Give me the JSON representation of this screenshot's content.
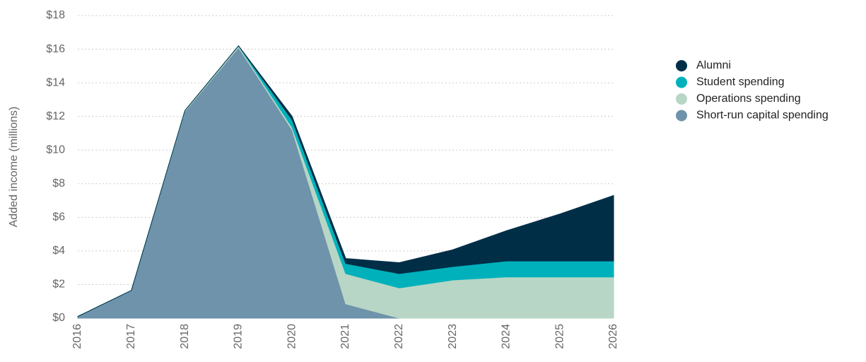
{
  "chart_data": {
    "type": "stacked_area",
    "y_label": "Added income (millions)",
    "categories": [
      "2016",
      "2017",
      "2018",
      "2019",
      "2020",
      "2021",
      "2022",
      "2023",
      "2024",
      "2025",
      "2026"
    ],
    "series": [
      {
        "name": "Alumni",
        "color": "#012e47",
        "values": [
          0,
          0,
          0,
          0,
          0.2,
          0.3,
          0.65,
          1.0,
          1.8,
          2.8,
          3.9
        ]
      },
      {
        "name": "Student spending",
        "color": "#00b1bb",
        "values": [
          0,
          0,
          0,
          0,
          0.45,
          0.6,
          0.85,
          0.8,
          0.95,
          0.95,
          0.95
        ]
      },
      {
        "name": "Operations spending",
        "color": "#b8d6c5",
        "values": [
          0,
          0,
          0.05,
          0.1,
          0.15,
          1.8,
          1.8,
          2.27,
          2.45,
          2.45,
          2.45
        ]
      },
      {
        "name": "Short-run capital spending",
        "color": "#6e93ab",
        "values": [
          0.1,
          1.65,
          12.3,
          16.1,
          11.2,
          0.85,
          0,
          0,
          0,
          0,
          0
        ]
      }
    ],
    "ylim": [
      0,
      18
    ],
    "yticks": [
      {
        "value": 0,
        "label": "$0"
      },
      {
        "value": 2,
        "label": "$2"
      },
      {
        "value": 4,
        "label": "$4"
      },
      {
        "value": 6,
        "label": "$6"
      },
      {
        "value": 8,
        "label": "$8"
      },
      {
        "value": 10,
        "label": "$10"
      },
      {
        "value": 12,
        "label": "$12"
      },
      {
        "value": 14,
        "label": "$14"
      },
      {
        "value": 16,
        "label": "$16"
      },
      {
        "value": 18,
        "label": "$18"
      }
    ],
    "grid": true
  }
}
